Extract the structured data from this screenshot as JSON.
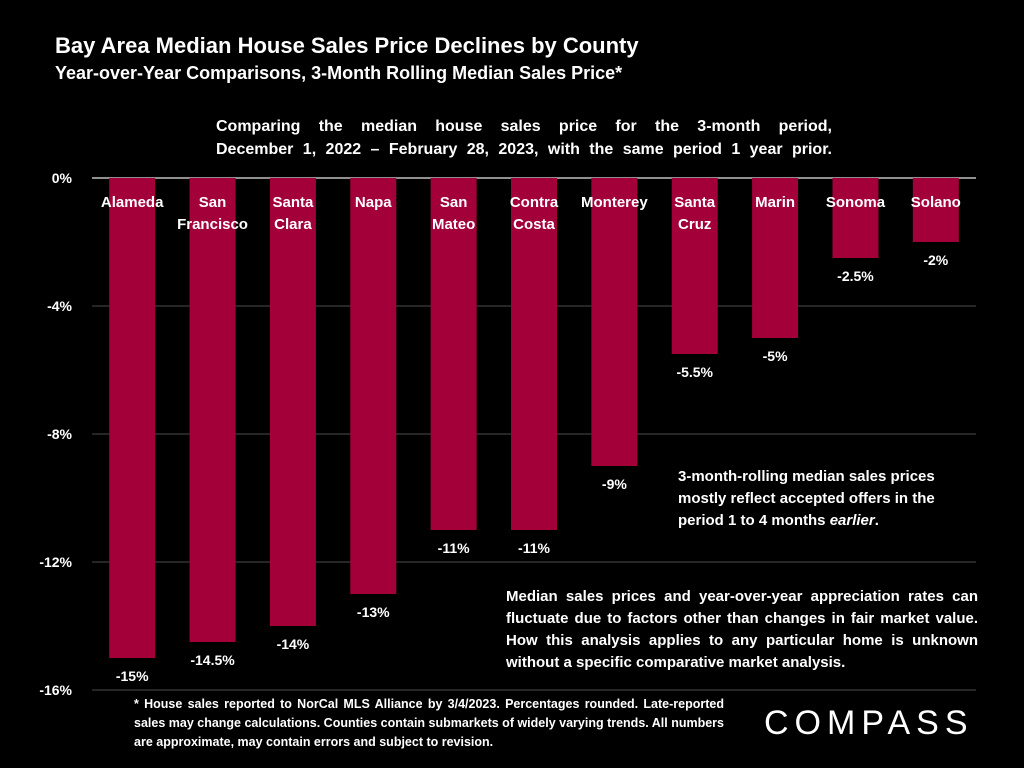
{
  "header": {
    "title": "Bay Area Median House Sales Price Declines by County",
    "subtitle": "Year-over-Year Comparisons, 3-Month Rolling Median Sales Price*"
  },
  "intro": {
    "line1": "Comparing the median house sales price for the 3-month period,",
    "line2": "December 1, 2022 – February 28, 2023, with the same period 1 year prior."
  },
  "chart_data": {
    "type": "bar",
    "orientation": "vertical",
    "categories": [
      [
        "Alameda"
      ],
      [
        "San",
        "Francisco"
      ],
      [
        "Santa",
        "Clara"
      ],
      [
        "Napa"
      ],
      [
        "San",
        "Mateo"
      ],
      [
        "Contra",
        "Costa"
      ],
      [
        "Monterey"
      ],
      [
        "Santa",
        "Cruz"
      ],
      [
        "Marin"
      ],
      [
        "Sonoma"
      ],
      [
        "Solano"
      ]
    ],
    "values": [
      -15,
      -14.5,
      -14,
      -13,
      -11,
      -11,
      -9,
      -5.5,
      -5,
      -2.5,
      -2
    ],
    "data_labels": [
      "-15%",
      "-14.5%",
      "-14%",
      "-13%",
      "-11%",
      "-11%",
      "-9%",
      "-5.5%",
      "-5%",
      "-2.5%",
      "-2%"
    ],
    "y_ticks": [
      0,
      -4,
      -8,
      -12,
      -16
    ],
    "y_tick_labels": [
      "0%",
      "-4%",
      "-8%",
      "-12%",
      "-16%"
    ],
    "ylim": [
      -16,
      0
    ],
    "grid": true,
    "bar_color": "#a3003a",
    "grid_color": "#4d4d4d"
  },
  "notes": {
    "note1_text": "3-month-rolling median sales prices mostly reflect accepted offers in the period 1 to 4 months ",
    "note1_emphasis": "earlier",
    "note1_end": ".",
    "note2": "Median sales prices and year-over-year appreciation rates can fluctuate due to factors other than changes in fair market value. How this analysis applies to any particular home is unknown without a specific comparative market analysis."
  },
  "footnote": "* House sales reported to NorCal MLS Alliance by 3/4/2023. Percentages rounded. Late-reported sales may change calculations. Counties contain submarkets of widely varying trends. All numbers are approximate, may contain errors and subject to revision.",
  "logo": {
    "text": "COMPASS"
  }
}
